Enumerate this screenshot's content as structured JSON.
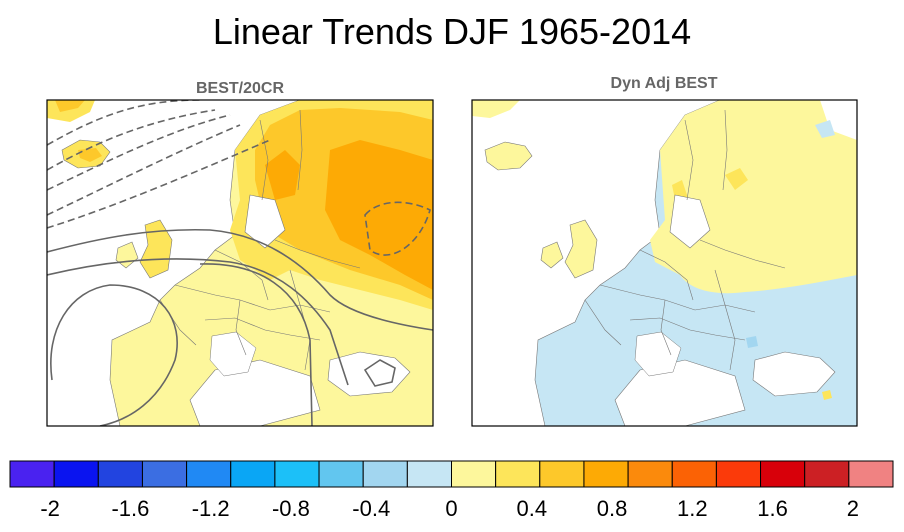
{
  "chart_data": {
    "type": "heatmap",
    "title": "Linear Trends DJF 1965-2014",
    "panels": [
      {
        "title": "BEST/20CR",
        "field": "temperature trend with circulation contours"
      },
      {
        "title": "Dyn Adj BEST",
        "field": "dynamically adjusted temperature trend"
      }
    ],
    "colorbar": {
      "colors": [
        "#4a22f0",
        "#0a14f0",
        "#2244e0",
        "#3b6ee2",
        "#2089f4",
        "#0aa6f5",
        "#1cc0f8",
        "#62c6ef",
        "#a2d6f0",
        "#c6e6f4",
        "#fdf79c",
        "#fde55a",
        "#fdc82a",
        "#fdaa05",
        "#fb8a0c",
        "#fb6205",
        "#fb3a0a",
        "#d8000a",
        "#cc2024",
        "#f08282"
      ],
      "tick_labels": [
        "-2",
        "-1.6",
        "-1.2",
        "-0.8",
        "-0.4",
        "0",
        "0.4",
        "0.8",
        "1.2",
        "1.6",
        "2"
      ],
      "tick_values": [
        -2,
        -1.6,
        -1.2,
        -0.8,
        -0.4,
        0,
        0.4,
        0.8,
        1.2,
        1.6,
        2
      ],
      "range": [
        -2.2,
        2.2
      ]
    }
  }
}
